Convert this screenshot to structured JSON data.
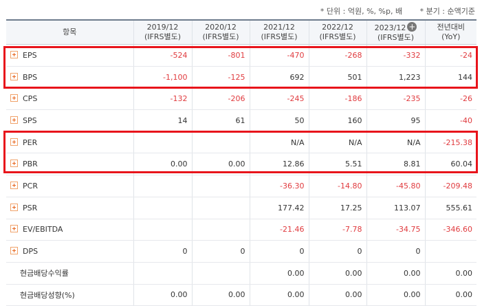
{
  "notes": {
    "unit": "* 단위 : 억원, %, %p, 배",
    "basis": "* 분기 : 순액기준"
  },
  "headers": {
    "item": "항목",
    "cols": [
      {
        "year": "2019/12",
        "sub": "(IFRS별도)"
      },
      {
        "year": "2020/12",
        "sub": "(IFRS별도)"
      },
      {
        "year": "2021/12",
        "sub": "(IFRS별도)"
      },
      {
        "year": "2022/12",
        "sub": "(IFRS별도)"
      },
      {
        "year": "2023/12",
        "sub": "(IFRS별도)"
      }
    ],
    "yoy": {
      "title": "전년대비",
      "sub": "(YoY)"
    }
  },
  "rows": [
    {
      "label": "EPS",
      "expand": true,
      "values": [
        "-524",
        "-801",
        "-470",
        "-268",
        "-332",
        "-24"
      ]
    },
    {
      "label": "BPS",
      "expand": true,
      "values": [
        "-1,100",
        "-125",
        "692",
        "501",
        "1,223",
        "144"
      ]
    },
    {
      "label": "CPS",
      "expand": true,
      "values": [
        "-132",
        "-206",
        "-245",
        "-186",
        "-235",
        "-26"
      ]
    },
    {
      "label": "SPS",
      "expand": true,
      "values": [
        "14",
        "61",
        "50",
        "160",
        "95",
        "-40"
      ]
    },
    {
      "label": "PER",
      "expand": true,
      "values": [
        "",
        "",
        "N/A",
        "N/A",
        "N/A",
        "-215.38"
      ]
    },
    {
      "label": "PBR",
      "expand": true,
      "values": [
        "0.00",
        "0.00",
        "12.86",
        "5.51",
        "8.81",
        "60.04"
      ]
    },
    {
      "label": "PCR",
      "expand": true,
      "values": [
        "",
        "",
        "-36.30",
        "-14.80",
        "-45.80",
        "-209.48"
      ]
    },
    {
      "label": "PSR",
      "expand": true,
      "values": [
        "",
        "",
        "177.42",
        "17.25",
        "113.07",
        "555.61"
      ]
    },
    {
      "label": "EV/EBITDA",
      "expand": true,
      "values": [
        "",
        "",
        "-21.46",
        "-7.78",
        "-34.75",
        "-346.60"
      ]
    },
    {
      "label": "DPS",
      "expand": true,
      "values": [
        "0",
        "0",
        "0",
        "0",
        "0",
        ""
      ]
    },
    {
      "label": "현금배당수익률",
      "expand": false,
      "values": [
        "",
        "",
        "0.00",
        "0.00",
        "0.00",
        "0.00"
      ]
    },
    {
      "label": "현금배당성향(%)",
      "expand": false,
      "values": [
        "0.00",
        "0.00",
        "0.00",
        "0.00",
        "0.00",
        "0.00"
      ]
    }
  ],
  "highlight_color": "#e8141b"
}
